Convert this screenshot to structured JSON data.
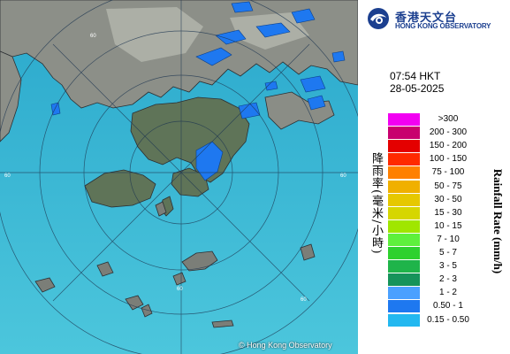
{
  "org": {
    "name_zh": "香港天文台",
    "name_en": "HONG KONG OBSERVATORY",
    "logo_icon": "hko-logo-icon",
    "brand_color": "#1b3f8f"
  },
  "timestamp": {
    "time": "07:54 HKT",
    "date": "28-05-2025"
  },
  "map": {
    "range_ring_labels": [
      "60",
      "60",
      "60",
      "60",
      "60"
    ],
    "credit": "© Hong Kong Observatory"
  },
  "legend": {
    "title_zh": "降雨率(毫米/小時)",
    "title_en": "Rainfall Rate (mm/h)",
    "items": [
      {
        "label": ">300",
        "color": "#f200f2"
      },
      {
        "label": "200 - 300",
        "color": "#c8006e"
      },
      {
        "label": "150 - 200",
        "color": "#e40000"
      },
      {
        "label": "100 - 150",
        "color": "#ff2a00"
      },
      {
        "label": "75 - 100",
        "color": "#ff8000"
      },
      {
        "label": "50 - 75",
        "color": "#f0b000"
      },
      {
        "label": "30 - 50",
        "color": "#e6c800"
      },
      {
        "label": "15 - 30",
        "color": "#d6d600"
      },
      {
        "label": "10 - 15",
        "color": "#a0e600"
      },
      {
        "label": "7 - 10",
        "color": "#5ef03c"
      },
      {
        "label": "5 - 7",
        "color": "#2ed12e"
      },
      {
        "label": "3 - 5",
        "color": "#1fb44a"
      },
      {
        "label": "2 - 3",
        "color": "#16935a"
      },
      {
        "label": "1 - 2",
        "color": "#4aa0ff"
      },
      {
        "label": "0.50 - 1",
        "color": "#1e78f0"
      },
      {
        "label": "0.15 - 0.50",
        "color": "#23b8f0"
      }
    ]
  }
}
